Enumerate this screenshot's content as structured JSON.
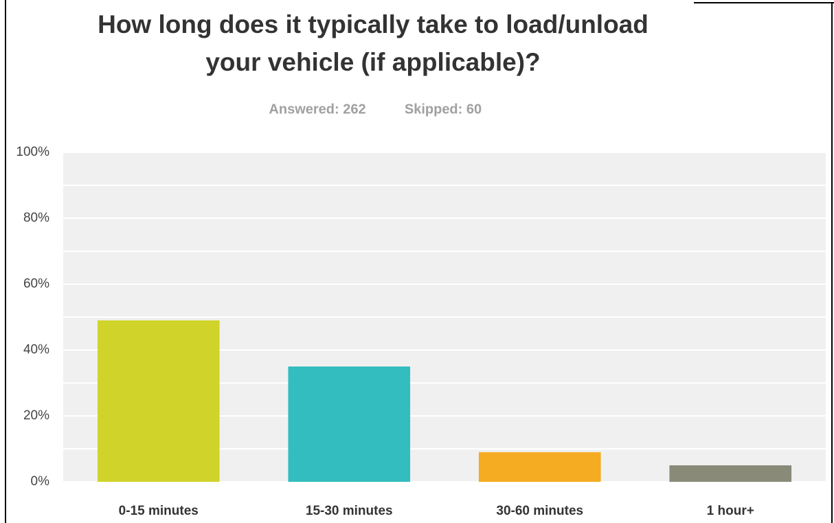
{
  "chart_data": {
    "type": "bar",
    "title": [
      "How long does it typically take to load/unload",
      "your vehicle (if applicable)?"
    ],
    "subtitle": [
      "Answered: 262",
      "Skipped: 60"
    ],
    "categories": [
      "0-15 minutes",
      "15-30 minutes",
      "30-60 minutes",
      "1 hour+"
    ],
    "values": [
      49,
      35,
      9,
      5
    ],
    "colors": [
      "#d0d42a",
      "#33bdbf",
      "#f5ac22",
      "#898a78"
    ],
    "ylim": [
      0,
      100
    ],
    "yticks": [
      {
        "value": 0,
        "label": "0%"
      },
      {
        "value": 20,
        "label": "20%"
      },
      {
        "value": 40,
        "label": "40%"
      },
      {
        "value": 60,
        "label": "60%"
      },
      {
        "value": 80,
        "label": "80%"
      },
      {
        "value": 100,
        "label": "100%"
      }
    ],
    "minor_yticks": [
      10,
      30,
      50,
      70,
      90
    ],
    "grid": true
  }
}
